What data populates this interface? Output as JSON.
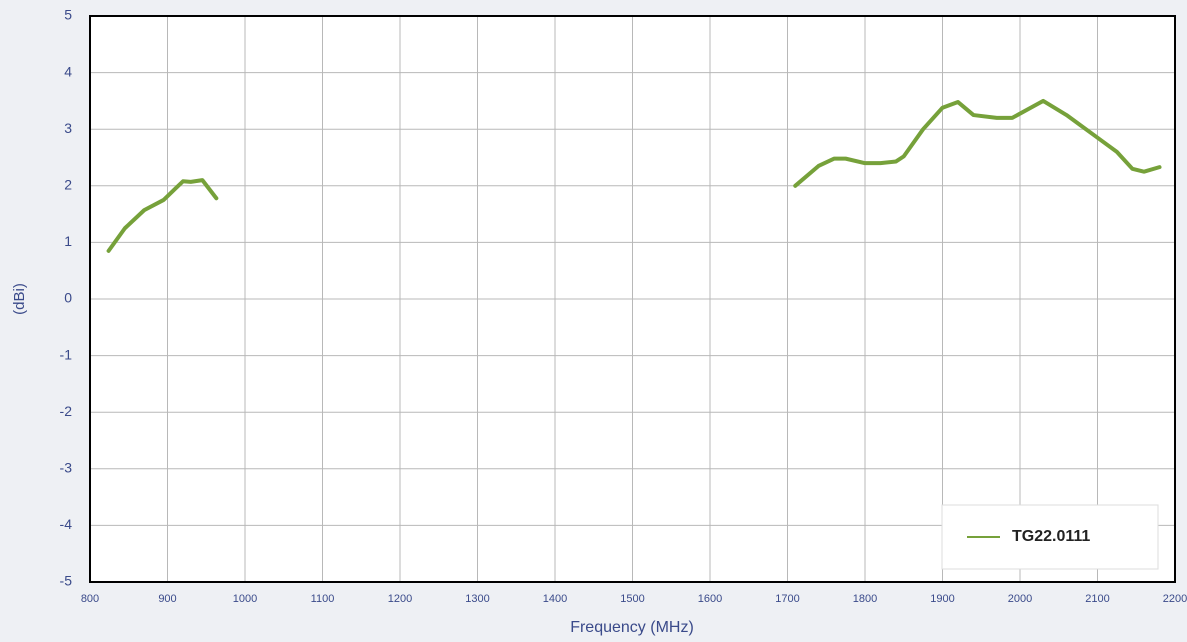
{
  "chart_data": {
    "type": "line",
    "xlabel": "Frequency (MHz)",
    "ylabel": "(dBi)",
    "x": [
      824,
      845,
      870,
      895,
      910,
      920,
      930,
      945,
      963,
      null,
      1710,
      1740,
      1760,
      1775,
      1800,
      1820,
      1840,
      1850,
      1875,
      1900,
      1920,
      1940,
      1970,
      1990,
      2030,
      2060,
      2100,
      2125,
      2145,
      2160,
      2180
    ],
    "series": [
      {
        "name": "TG22.0111",
        "color": "#76a13a",
        "values": [
          0.85,
          1.25,
          1.57,
          1.75,
          1.95,
          2.08,
          2.07,
          2.1,
          1.78,
          null,
          2.0,
          2.35,
          2.48,
          2.48,
          2.4,
          2.4,
          2.43,
          2.52,
          3.0,
          3.38,
          3.48,
          3.25,
          3.2,
          3.2,
          3.5,
          3.25,
          2.85,
          2.6,
          2.3,
          2.25,
          2.33
        ]
      }
    ],
    "xlim": [
      800,
      2200
    ],
    "xticks": [
      800,
      900,
      1000,
      1100,
      1200,
      1300,
      1400,
      1500,
      1600,
      1700,
      1800,
      1900,
      2000,
      2100,
      2200
    ],
    "ylim": [
      -5,
      5
    ],
    "yticks": [
      -5,
      -4,
      -3,
      -2,
      -1,
      0,
      1,
      2,
      3,
      4,
      5
    ],
    "grid": true,
    "legend": "lower right"
  }
}
